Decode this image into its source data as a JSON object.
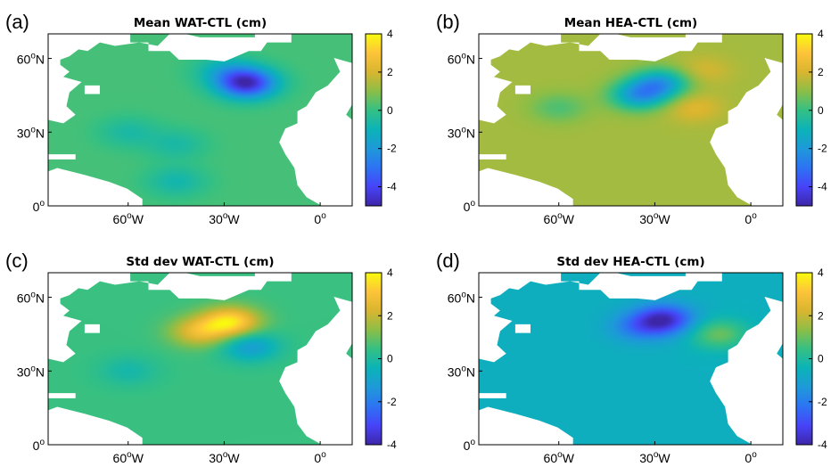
{
  "chart_data": [
    {
      "type": "heatmap",
      "panel": "(a)",
      "title": "Mean WAT-CTL (cm)",
      "x_ticks": [
        "60",
        "30",
        "0"
      ],
      "x_tick_suffix": [
        "W",
        "W",
        ""
      ],
      "x_tick_values": [
        -60,
        -30,
        0
      ],
      "y_ticks": [
        "60",
        "30",
        "0"
      ],
      "y_tick_suffix": [
        "N",
        "N",
        ""
      ],
      "y_tick_values": [
        60,
        30,
        0
      ],
      "xlim": [
        -85,
        10
      ],
      "ylim": [
        0,
        70
      ],
      "colorbar": {
        "ticks": [
          "4",
          "2",
          "0",
          "-2",
          "-4"
        ],
        "tick_values": [
          4,
          2,
          0,
          -2,
          -4
        ],
        "clim": [
          -5,
          4
        ]
      },
      "field_base": 0.2,
      "features": [
        {
          "lon": -23,
          "lat": 50,
          "value": -4.8
        },
        {
          "lon": -30,
          "lat": 55,
          "value": -1.0
        },
        {
          "lon": -45,
          "lat": 25,
          "value": -0.6
        },
        {
          "lon": -45,
          "lat": 10,
          "value": -0.8
        },
        {
          "lon": -60,
          "lat": 30,
          "value": -0.6
        }
      ]
    },
    {
      "type": "heatmap",
      "panel": "(b)",
      "title": "Mean HEA-CTL (cm)",
      "x_ticks": [
        "60",
        "30",
        "0"
      ],
      "x_tick_suffix": [
        "W",
        "W",
        ""
      ],
      "x_tick_values": [
        -60,
        -30,
        0
      ],
      "y_ticks": [
        "60",
        "30",
        "0"
      ],
      "y_tick_suffix": [
        "N",
        "N",
        ""
      ],
      "y_tick_values": [
        60,
        30,
        0
      ],
      "xlim": [
        -85,
        10
      ],
      "ylim": [
        0,
        70
      ],
      "colorbar": {
        "ticks": [
          "4",
          "2",
          "0",
          "-2",
          "-4"
        ],
        "tick_values": [
          4,
          2,
          0,
          -2,
          -4
        ],
        "clim": [
          -5,
          4
        ]
      },
      "field_base": 1.3,
      "features": [
        {
          "lon": -35,
          "lat": 45,
          "value": -1.8
        },
        {
          "lon": -28,
          "lat": 50,
          "value": -1.7
        },
        {
          "lon": -18,
          "lat": 40,
          "value": 2.2
        },
        {
          "lon": -15,
          "lat": 55,
          "value": 2.0
        },
        {
          "lon": -60,
          "lat": 40,
          "value": 0.3
        }
      ]
    },
    {
      "type": "heatmap",
      "panel": "(c)",
      "title": "Std dev WAT-CTL (cm)",
      "x_ticks": [
        "60",
        "30",
        "0"
      ],
      "x_tick_suffix": [
        "W",
        "W",
        ""
      ],
      "x_tick_values": [
        -60,
        -30,
        0
      ],
      "y_ticks": [
        "60",
        "30",
        "0"
      ],
      "y_tick_suffix": [
        "N",
        "N",
        ""
      ],
      "y_tick_values": [
        60,
        30,
        0
      ],
      "xlim": [
        -85,
        10
      ],
      "ylim": [
        0,
        70
      ],
      "colorbar": {
        "ticks": [
          "4",
          "2",
          "0",
          "-2",
          "-4"
        ],
        "tick_values": [
          4,
          2,
          0,
          -2,
          -4
        ],
        "clim": [
          -4,
          4
        ]
      },
      "field_base": 0.5,
      "features": [
        {
          "lon": -28,
          "lat": 50,
          "value": 3.6
        },
        {
          "lon": -38,
          "lat": 46,
          "value": 2.5
        },
        {
          "lon": -22,
          "lat": 40,
          "value": -1.2
        },
        {
          "lon": -60,
          "lat": 30,
          "value": -0.2
        }
      ]
    },
    {
      "type": "heatmap",
      "panel": "(d)",
      "title": "Std dev HEA-CTL (cm)",
      "x_ticks": [
        "60",
        "30",
        "0"
      ],
      "x_tick_suffix": [
        "W",
        "W",
        ""
      ],
      "x_tick_values": [
        -60,
        -30,
        0
      ],
      "y_ticks": [
        "60",
        "30",
        "0"
      ],
      "y_tick_suffix": [
        "N",
        "N",
        ""
      ],
      "y_tick_values": [
        60,
        30,
        0
      ],
      "xlim": [
        -85,
        10
      ],
      "ylim": [
        0,
        70
      ],
      "colorbar": {
        "ticks": [
          "4",
          "2",
          "0",
          "-2",
          "-4"
        ],
        "tick_values": [
          4,
          2,
          0,
          -2,
          -4
        ],
        "clim": [
          -4,
          4
        ]
      },
      "field_base": -0.6,
      "features": [
        {
          "lon": -27,
          "lat": 51,
          "value": -3.6
        },
        {
          "lon": -35,
          "lat": 48,
          "value": -2.0
        },
        {
          "lon": -45,
          "lat": 30,
          "value": -0.6
        },
        {
          "lon": -10,
          "lat": 45,
          "value": 1.0
        }
      ]
    }
  ],
  "colormap": [
    "#3e26a8",
    "#4743f8",
    "#2d73f3",
    "#1e99d9",
    "#0bb3b8",
    "#34c084",
    "#8cbe47",
    "#d9b52f",
    "#fdc43a",
    "#f9fb0e"
  ],
  "land_color": "#ffffff"
}
